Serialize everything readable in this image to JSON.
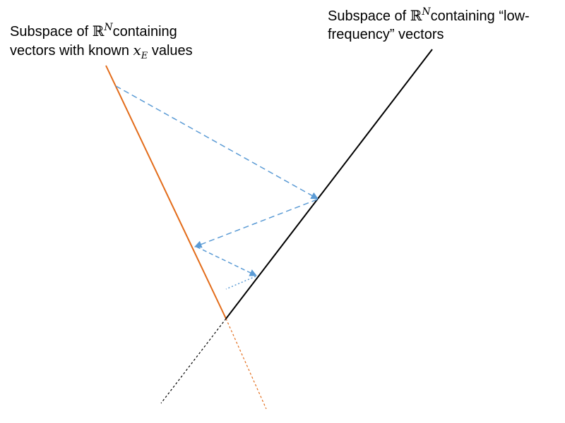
{
  "labels": {
    "left": {
      "prefix": "Subspace of ",
      "math_symbol": "ℝ",
      "math_superscript": "N",
      "suffix": "containing",
      "line2_prefix": "vectors with known ",
      "line2_var": "x",
      "line2_sub": "E",
      "line2_suffix": " values"
    },
    "right": {
      "prefix": "Subspace of ",
      "math_symbol": "ℝ",
      "math_superscript": "N",
      "suffix": "containing “low-",
      "line2": "frequency” vectors"
    }
  },
  "colors": {
    "known_subspace_line": "#E36C1A",
    "low_frequency_subspace_line": "#000000",
    "projection_arrows": "#5B9BD5"
  }
}
